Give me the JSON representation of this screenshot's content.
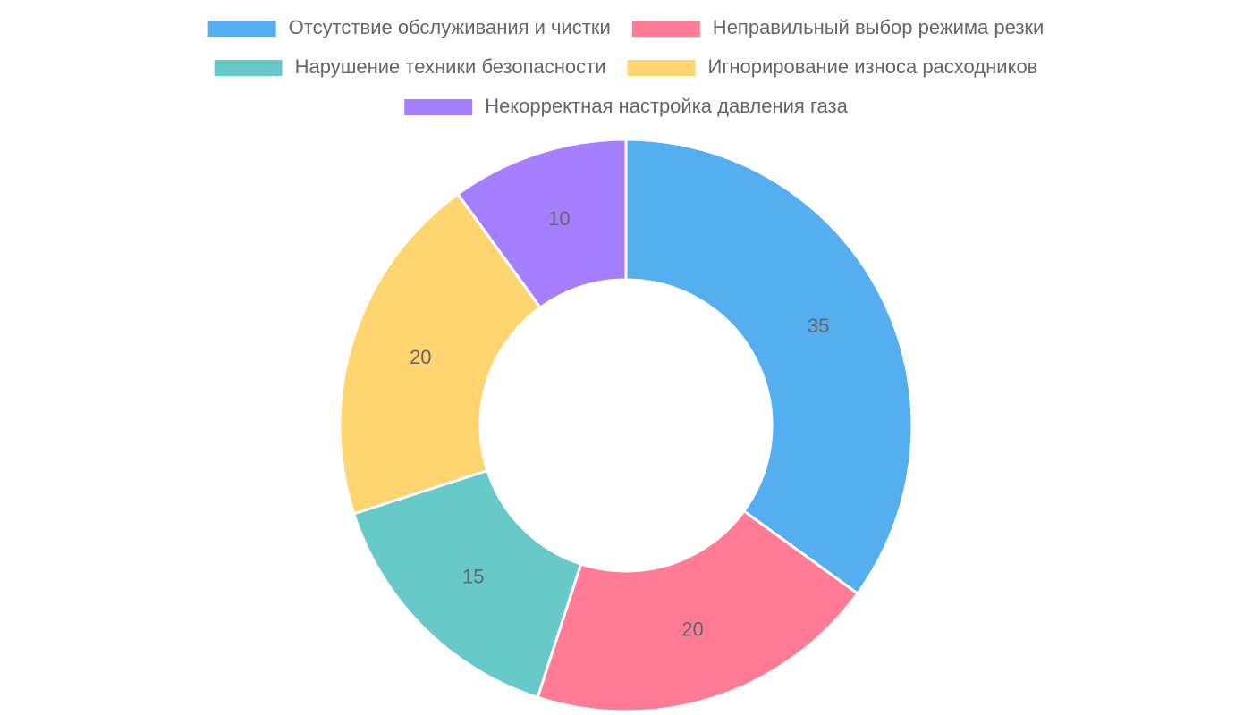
{
  "chart_data": {
    "type": "doughnut",
    "categories": [
      "Отсутствие обслуживания и чистки",
      "Неправильный выбор режима резки",
      "Нарушение техники безопасности",
      "Игнорирование износа расходников",
      "Некорректная настройка давления газа"
    ],
    "values": [
      35,
      20,
      15,
      20,
      10
    ],
    "colors": [
      "#54aeef",
      "#ff7b96",
      "#68c9c9",
      "#ffd572",
      "#a67ffe"
    ],
    "legend": "top"
  }
}
